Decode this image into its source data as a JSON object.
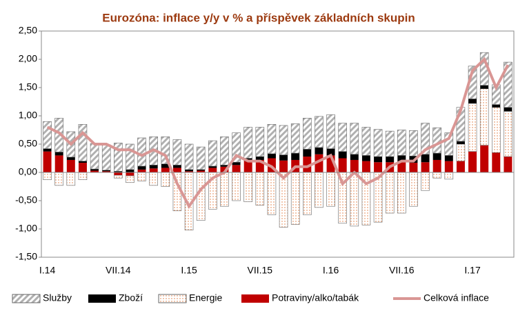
{
  "chart_data": {
    "type": "bar",
    "title": "Eurozóna: inflace y/y v % a příspěvek základních skupin",
    "categories": [
      "I.14",
      null,
      null,
      null,
      null,
      null,
      "VII.14",
      null,
      null,
      null,
      null,
      null,
      "I.15",
      null,
      null,
      null,
      null,
      null,
      "VII.15",
      null,
      null,
      null,
      null,
      null,
      "I.16",
      null,
      null,
      null,
      null,
      null,
      "VII.16",
      null,
      null,
      null,
      null,
      null,
      "I.17",
      null,
      null,
      null
    ],
    "ylim": [
      -1.5,
      2.5
    ],
    "yticks": [
      {
        "value": -1.5,
        "label": "-1,50"
      },
      {
        "value": -1,
        "label": "-1,00"
      },
      {
        "value": -0.5,
        "label": "-0,50"
      },
      {
        "value": 0,
        "label": "0,00"
      },
      {
        "value": 0.5,
        "label": "0,50"
      },
      {
        "value": 1,
        "label": "1,00"
      },
      {
        "value": 1.5,
        "label": "1,50"
      },
      {
        "value": 2,
        "label": "2,00"
      },
      {
        "value": 2.5,
        "label": "2,50"
      }
    ],
    "series": [
      {
        "name": "Služby",
        "color": "#b0b0b0",
        "values": [
          0.48,
          0.6,
          0.45,
          0.65,
          0.45,
          0.45,
          0.5,
          0.45,
          0.5,
          0.5,
          0.48,
          0.45,
          0.45,
          0.4,
          0.45,
          0.5,
          0.52,
          0.55,
          0.52,
          0.52,
          0.52,
          0.52,
          0.55,
          0.55,
          0.6,
          0.5,
          0.55,
          0.5,
          0.48,
          0.45,
          0.45,
          0.45,
          0.55,
          0.45,
          0.4,
          0.6,
          0.58,
          0.58,
          0.35,
          0.8
        ]
      },
      {
        "name": "Zboží",
        "color": "#000000",
        "values": [
          0.05,
          0.06,
          0.05,
          0.03,
          0.03,
          0.02,
          0.02,
          0.05,
          0.06,
          0.06,
          0.07,
          0.05,
          0.03,
          0.02,
          0.03,
          0.03,
          0.05,
          0.05,
          0.06,
          0.08,
          0.1,
          0.12,
          0.13,
          0.12,
          0.12,
          0.12,
          0.1,
          0.1,
          0.1,
          0.1,
          0.12,
          0.12,
          0.14,
          0.12,
          0.1,
          0.05,
          0.08,
          0.06,
          0.05,
          0.07
        ]
      },
      {
        "name": "Energie",
        "color": "#e07030",
        "values": [
          -0.13,
          -0.23,
          -0.23,
          -0.13,
          0,
          0,
          -0.05,
          -0.12,
          -0.15,
          -0.23,
          -0.25,
          -0.68,
          -1.02,
          -0.85,
          -0.65,
          -0.6,
          -0.5,
          -0.52,
          -0.58,
          -0.75,
          -0.97,
          -0.92,
          -0.75,
          -0.62,
          -0.6,
          -0.9,
          -0.95,
          -0.93,
          -0.88,
          -0.72,
          -0.72,
          -0.6,
          -0.32,
          -0.1,
          -0.12,
          0.3,
          0.85,
          1.0,
          0.8,
          0.8
        ]
      },
      {
        "name": "Potraviny/alko/tabák",
        "color": "#c00000",
        "values": [
          0.37,
          0.3,
          0.22,
          0.17,
          0.03,
          0.02,
          -0.05,
          -0.06,
          0.05,
          0.07,
          0.08,
          0.08,
          0.02,
          0.03,
          0.08,
          0.1,
          0.13,
          0.2,
          0.22,
          0.25,
          0.21,
          0.22,
          0.28,
          0.32,
          0.3,
          0.25,
          0.22,
          0.2,
          0.18,
          0.18,
          0.18,
          0.17,
          0.18,
          0.22,
          0.2,
          0.2,
          0.37,
          0.48,
          0.35,
          0.28
        ]
      },
      {
        "name": "Celková inflace",
        "color": "#d99694",
        "line": true,
        "values": [
          0.8,
          0.7,
          0.5,
          0.7,
          0.5,
          0.5,
          0.4,
          0.4,
          0.3,
          0.4,
          0.3,
          -0.2,
          -0.6,
          -0.3,
          -0.1,
          0,
          0.3,
          0.2,
          0.2,
          0.1,
          -0.1,
          0.1,
          0.1,
          0.2,
          0.3,
          -0.2,
          0,
          -0.2,
          -0.1,
          0.1,
          0.2,
          0.2,
          0.4,
          0.5,
          0.6,
          1.1,
          1.8,
          2.0,
          1.5,
          1.9
        ]
      }
    ]
  }
}
